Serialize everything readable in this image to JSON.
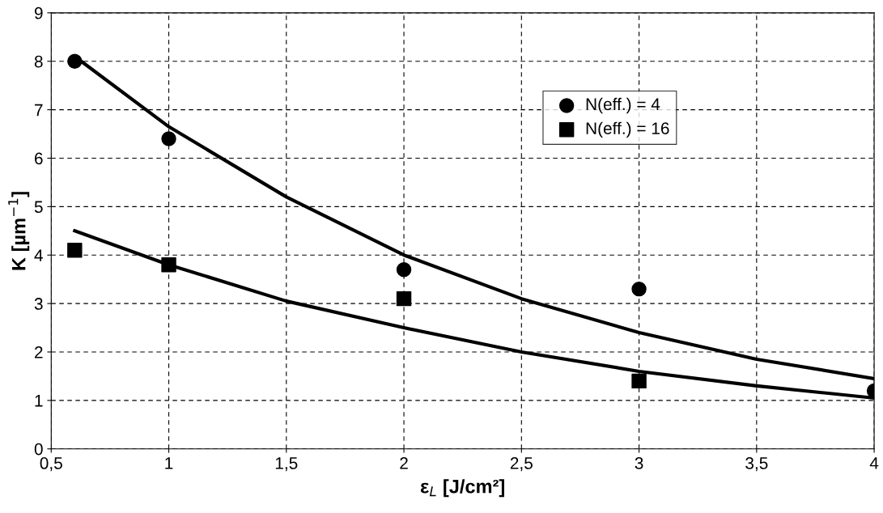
{
  "chart_data": {
    "type": "scatter",
    "xlabel": "ε$_{L}$ [J/cm²]",
    "ylabel": "K [µm$^{−1}$]",
    "xlim": [
      0.5,
      4
    ],
    "xticks": [
      {
        "value": 0.5,
        "label": "0,5"
      },
      1,
      {
        "value": 1.5,
        "label": "1,5"
      },
      2,
      {
        "value": 2.5,
        "label": "2,5"
      },
      3,
      {
        "value": 3.5,
        "label": "3,5"
      },
      4
    ],
    "ylim": [
      0,
      9
    ],
    "yticks": [
      0,
      1,
      2,
      3,
      4,
      5,
      6,
      7,
      8,
      9
    ],
    "grid": true,
    "legend": "top right",
    "series": [
      {
        "name": "N(eff.) = 4",
        "marker": "circle",
        "color": "#000000",
        "x": [
          0.6,
          1,
          2,
          3,
          4
        ],
        "values": [
          8.0,
          6.4,
          3.7,
          3.3,
          1.2
        ]
      },
      {
        "name": "N(eff.) = 16",
        "marker": "square",
        "color": "#000000",
        "x": [
          0.6,
          1,
          2,
          3
        ],
        "values": [
          4.1,
          3.8,
          3.1,
          1.4
        ]
      },
      {
        "type": "line",
        "line_style": "solid",
        "marker": "none",
        "color": "#000000",
        "x": [
          0.6,
          1,
          1.5,
          2,
          2.5,
          3,
          3.5,
          4
        ],
        "values": [
          8.1,
          6.65,
          5.2,
          4.0,
          3.1,
          2.4,
          1.85,
          1.45
        ]
      },
      {
        "type": "line",
        "line_style": "solid",
        "marker": "none",
        "color": "#000000",
        "x": [
          0.6,
          1,
          1.5,
          2,
          2.5,
          3,
          3.5,
          4
        ],
        "values": [
          4.5,
          3.8,
          3.05,
          2.5,
          2.0,
          1.6,
          1.3,
          1.05
        ]
      }
    ]
  }
}
